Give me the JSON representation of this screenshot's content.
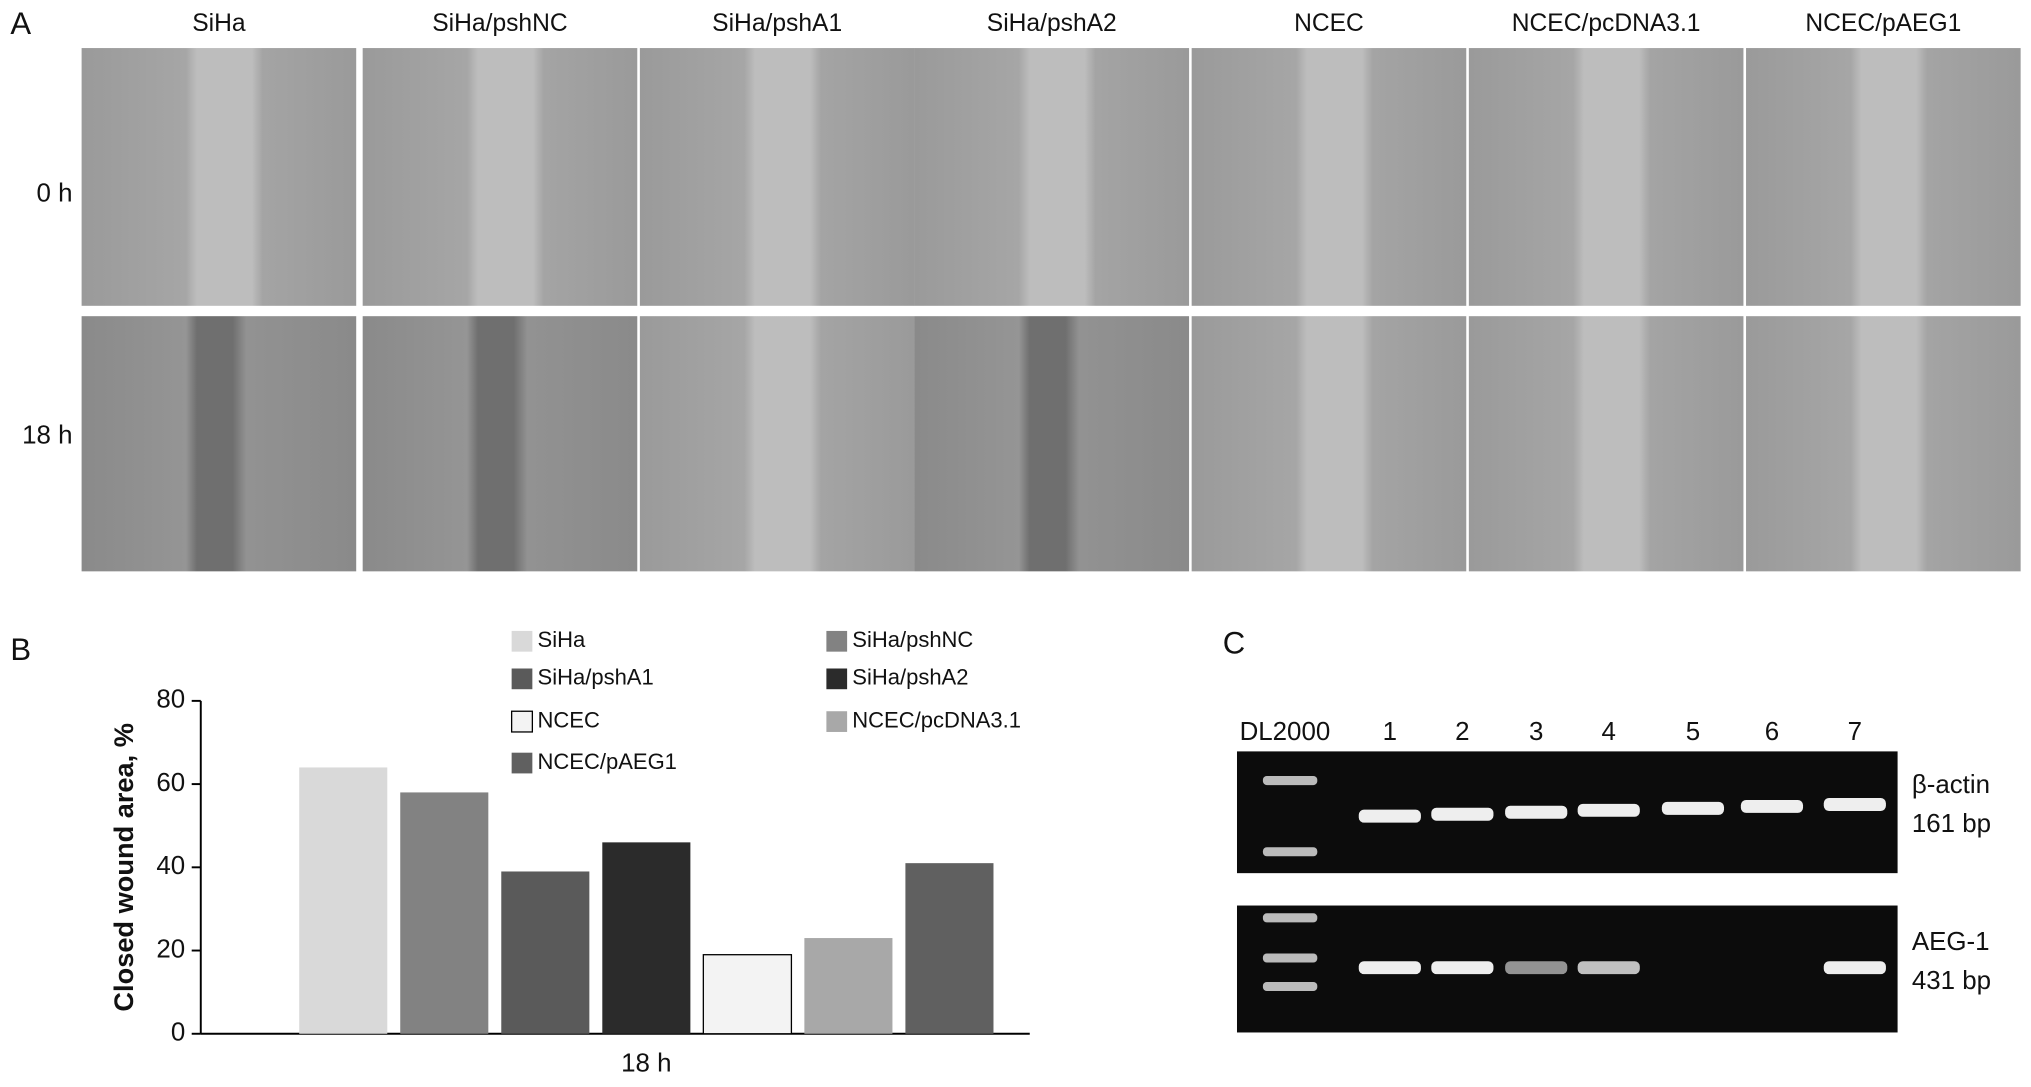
{
  "panel_labels": [
    "A",
    "B",
    "C"
  ],
  "panel_a": {
    "columns": [
      "SiHa",
      "SiHa/pshNC",
      "SiHa/pshA1",
      "SiHa/pshA2",
      "NCEC",
      "NCEC/pcDNA3.1",
      "NCEC/pAEG1"
    ],
    "rows": [
      "0 h",
      "18 h"
    ]
  },
  "chart_data": {
    "type": "bar",
    "y_label": "Closed wound area, %",
    "categories": [
      "18 h"
    ],
    "series": [
      {
        "name": "SiHa",
        "color": "#d9d9d9",
        "values": [
          64
        ]
      },
      {
        "name": "SiHa/pshNC",
        "color": "#828282",
        "values": [
          58
        ]
      },
      {
        "name": "SiHa/pshA1",
        "color": "#5a5a5a",
        "values": [
          39
        ]
      },
      {
        "name": "SiHa/pshA2",
        "color": "#2b2b2b",
        "values": [
          46
        ]
      },
      {
        "name": "NCEC",
        "color": "#f3f3f3",
        "values": [
          19
        ]
      },
      {
        "name": "NCEC/pcDNA3.1",
        "color": "#a8a8a8",
        "values": [
          23
        ]
      },
      {
        "name": "NCEC/pAEG1",
        "color": "#606060",
        "values": [
          41
        ]
      }
    ],
    "ylim": [
      0,
      80
    ],
    "yticks": [
      0,
      20,
      40,
      60,
      80
    ]
  },
  "panel_c": {
    "lanes": [
      "DL2000",
      "1",
      "2",
      "3",
      "4",
      "5",
      "6",
      "7"
    ],
    "gels": [
      {
        "gene": "β-actin",
        "size": "161 bp"
      },
      {
        "gene": "AEG-1",
        "size": "431 bp"
      }
    ]
  }
}
